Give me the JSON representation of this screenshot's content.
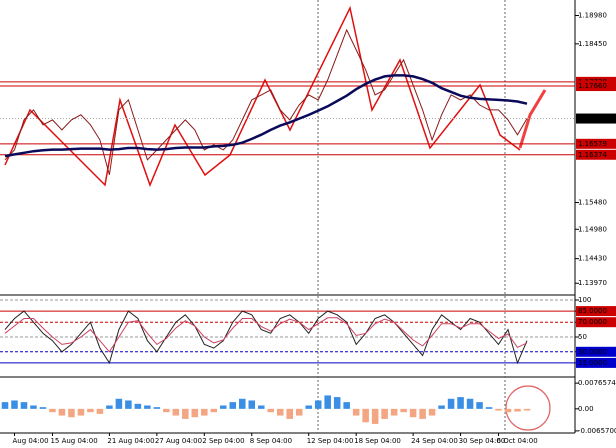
{
  "chart_data": [
    {
      "type": "line",
      "categories": [
        null,
        "Aug 04:00",
        null,
        null,
        null,
        "15 Aug 04:00",
        null,
        null,
        null,
        null,
        null,
        "21 Aug 04:00",
        null,
        null,
        null,
        null,
        "27 Aug 04:00",
        null,
        null,
        null,
        null,
        "2 Sep 04:00",
        null,
        null,
        null,
        null,
        "8 Sep 04:00",
        null,
        null,
        null,
        null,
        null,
        "12 Sep 04:00",
        null,
        null,
        null,
        null,
        "18 Sep 04:00",
        null,
        null,
        null,
        null,
        null,
        "24 Sep 04:00",
        null,
        null,
        null,
        null,
        "30 Sep 04:00",
        null,
        null,
        null,
        "6 Oct 04:00",
        null,
        null,
        null
      ],
      "series": [
        {
          "color": "#8b1a1a",
          "values": [
            1.16279,
            1.16466,
            1.17027,
            1.17214,
            1.16934,
            1.17027,
            1.1684,
            1.17027,
            1.17121,
            1.16934,
            1.16653,
            1.15999,
            1.17214,
            1.17401,
            1.1684,
            1.16279,
            1.16466,
            1.16653,
            1.1684,
            1.17027,
            1.1684,
            1.16466,
            1.1656,
            1.16466,
            1.16653,
            1.17027,
            1.17401,
            1.17495,
            1.17588,
            1.17214,
            1.17027,
            1.17308,
            1.17495,
            1.17401,
            1.17775,
            1.18243,
            1.1871,
            1.18336,
            1.17962,
            1.17495,
            1.17588,
            1.17869,
            1.18149,
            1.17682,
            1.17214,
            1.16653,
            1.17121,
            1.17495,
            1.17401,
            1.17495,
            1.17308,
            1.17214,
            1.17214,
            1.17027,
            1.16747,
            1.17052
          ]
        },
        {
          "color": "#0a0a5a",
          "values": [
            1.1635,
            1.1638,
            1.1641,
            1.1644,
            1.1646,
            1.1647,
            1.1647,
            1.1648,
            1.1649,
            1.1649,
            1.1649,
            1.1647,
            1.1648,
            1.165,
            1.165,
            1.1648,
            1.1647,
            1.1648,
            1.165,
            1.1651,
            1.1651,
            1.1651,
            1.1653,
            1.1654,
            1.1656,
            1.166,
            1.1667,
            1.1675,
            1.1684,
            1.1692,
            1.1698,
            1.1705,
            1.1712,
            1.172,
            1.1728,
            1.1738,
            1.1748,
            1.176,
            1.177,
            1.1778,
            1.1784,
            1.1786,
            1.1786,
            1.1784,
            1.1779,
            1.1772,
            1.1762,
            1.1755,
            1.1748,
            1.1744,
            1.1742,
            1.1741,
            1.174,
            1.1739,
            1.1737,
            1.1733
          ]
        }
      ],
      "ylim": [
        1.1375,
        1.1927
      ],
      "yticks": [
        {
          "value": 1.1898,
          "label": "1.18980"
        },
        {
          "value": 1.1845,
          "label": "1.18450"
        },
        {
          "value": 1.1548,
          "label": "1.15480"
        },
        {
          "value": 1.1498,
          "label": "1.14980"
        },
        {
          "value": 1.1443,
          "label": "1.14430"
        },
        {
          "value": 1.1397,
          "label": "1.13970"
        }
      ],
      "levels": [
        {
          "value": 1.17738,
          "label": "1.17738"
        },
        {
          "value": 1.1766,
          "label": "1.17660"
        },
        {
          "value": 1.16579,
          "label": "1.16579"
        },
        {
          "value": 1.16374,
          "label": "1.16374"
        }
      ],
      "level_color": "#cc0000",
      "current": {
        "value": 1.17052,
        "label": "1.17052"
      }
    },
    {
      "type": "line",
      "series": [
        {
          "color": "#222222",
          "values": [
            60,
            75,
            85,
            70,
            55,
            45,
            30,
            40,
            55,
            70,
            35,
            15,
            60,
            85,
            75,
            45,
            30,
            50,
            70,
            80,
            65,
            40,
            35,
            45,
            70,
            85,
            80,
            60,
            55,
            75,
            80,
            70,
            55,
            75,
            85,
            80,
            70,
            40,
            55,
            75,
            80,
            70,
            55,
            40,
            25,
            60,
            80,
            70,
            60,
            75,
            70,
            55,
            40,
            60,
            15,
            45
          ]
        },
        {
          "color": "#d04060",
          "values": [
            55,
            65,
            75,
            75,
            62,
            50,
            40,
            42,
            50,
            60,
            45,
            30,
            50,
            70,
            72,
            55,
            40,
            48,
            62,
            72,
            65,
            50,
            42,
            46,
            62,
            75,
            75,
            64,
            58,
            68,
            74,
            70,
            60,
            68,
            76,
            76,
            68,
            52,
            55,
            68,
            74,
            70,
            58,
            46,
            38,
            52,
            68,
            68,
            62,
            68,
            68,
            58,
            48,
            54,
            36,
            42
          ]
        }
      ],
      "ylim": [
        0,
        100
      ],
      "yticks": [
        100,
        {
          "value": 85,
          "label": "85.0000"
        },
        {
          "value": 70,
          "label": "70.0000"
        },
        50,
        {
          "value": 30,
          "label": "30.0000"
        },
        {
          "value": 15,
          "label": "15.0000"
        }
      ],
      "grid_colors": [
        "#999999",
        "#cc0000",
        "#cc0000",
        "#999999",
        "#0000cc",
        "#0000cc"
      ]
    },
    {
      "type": "bar",
      "values": [
        0.002,
        0.0025,
        0.002,
        0.001,
        0.0005,
        -0.001,
        -0.002,
        -0.0025,
        -0.002,
        -0.001,
        -0.0015,
        0.001,
        0.003,
        0.0025,
        0.0015,
        0.001,
        0.0005,
        -0.001,
        -0.002,
        -0.003,
        -0.0025,
        -0.002,
        -0.001,
        0.001,
        0.002,
        0.003,
        0.0025,
        0.001,
        -0.001,
        -0.002,
        -0.003,
        -0.002,
        0.001,
        0.0025,
        0.004,
        0.0035,
        0.002,
        -0.002,
        -0.004,
        -0.0045,
        -0.003,
        -0.002,
        -0.001,
        -0.0025,
        -0.003,
        -0.002,
        0.001,
        0.003,
        0.0035,
        0.003,
        0.002,
        0.0005,
        -0.0005,
        -0.001,
        -0.0008,
        -0.0005
      ],
      "up_color": "#3a8ee6",
      "down_color": "#f4a582",
      "ylim": [
        -0.0066,
        0.0077
      ],
      "yticks": [
        0.0076574,
        {
          "value": 0,
          "label": "0.00"
        },
        {
          "value": -0.00657,
          "label": "-0.0065700"
        }
      ]
    }
  ]
}
